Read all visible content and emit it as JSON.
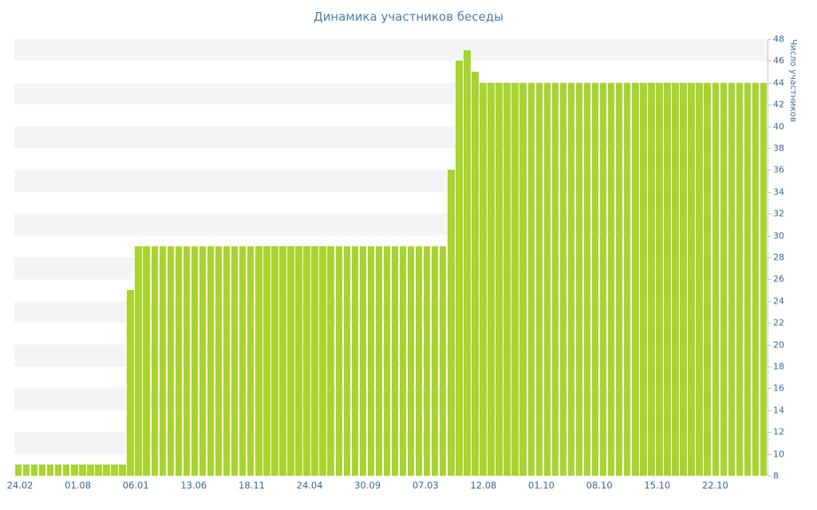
{
  "page": {
    "background": "#ffffff"
  },
  "chart_data": {
    "type": "bar",
    "title": "Динамика участников беседы",
    "xlabel": "",
    "ylabel": "Число участников",
    "ylim": [
      8,
      48
    ],
    "grid": "striped-horizontal",
    "legend": "none",
    "y_axis_side": "right",
    "y_ticks": [
      8,
      10,
      12,
      14,
      16,
      18,
      20,
      22,
      24,
      26,
      28,
      30,
      32,
      34,
      36,
      38,
      40,
      42,
      44,
      46,
      48
    ],
    "x_tick_labels": [
      "24.02",
      "01.08",
      "06.01",
      "13.06",
      "18.11",
      "24.04",
      "30.09",
      "07.03",
      "12.08",
      "01.10",
      "08.10",
      "15.10",
      "22.10"
    ],
    "values": [
      9,
      9,
      9,
      9,
      9,
      9,
      9,
      9,
      9,
      9,
      9,
      9,
      9,
      9,
      25,
      29,
      29,
      29,
      29,
      29,
      29,
      29,
      29,
      29,
      29,
      29,
      29,
      29,
      29,
      29,
      29,
      29,
      29,
      29,
      29,
      29,
      29,
      29,
      29,
      29,
      29,
      29,
      29,
      29,
      29,
      29,
      29,
      29,
      29,
      29,
      29,
      29,
      29,
      29,
      36,
      46,
      47,
      45,
      44,
      44,
      44,
      44,
      44,
      44,
      44,
      44,
      44,
      44,
      44,
      44,
      44,
      44,
      44,
      44,
      44,
      44,
      44,
      44,
      44,
      44,
      44,
      44,
      44,
      44,
      44,
      44,
      44,
      44,
      44,
      44,
      44,
      44,
      44,
      44
    ],
    "bar_color": "#a8d430",
    "stripe_color": "#f4f4f6",
    "axis_color": "#c6c6c6",
    "text_colors": {
      "title": "#4e7cac",
      "ticks": "#38678f",
      "axis_title": "#4b6f94"
    }
  }
}
